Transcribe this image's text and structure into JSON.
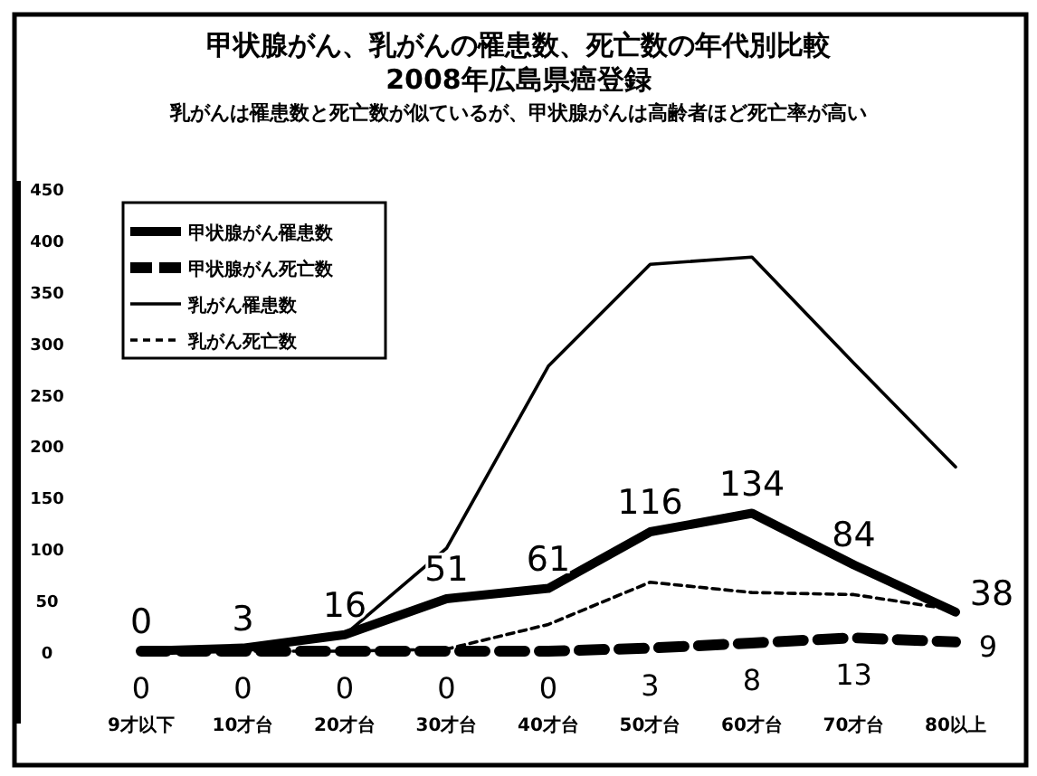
{
  "chart_data": {
    "type": "line",
    "title": "甲状腺がん、乳がんの罹患数、死亡数の年代別比較\n2008年広島県癌登録",
    "subtitle": "乳がんは罹患数と死亡数が似ているが、甲状腺がんは高齢者ほど死亡率が高い",
    "categories": [
      "9才以下",
      "10才台",
      "20才台",
      "30才台",
      "40才台",
      "50才台",
      "60才台",
      "70才台",
      "80以上"
    ],
    "series": [
      {
        "name": "甲状腺がん罹患数",
        "color": "#000000",
        "line_style": "solid",
        "values": [
          0,
          3,
          16,
          51,
          61,
          116,
          134,
          84,
          38
        ],
        "value_labels": [
          "0",
          "3",
          "16",
          "51",
          "61",
          "116",
          "134",
          "84",
          "38"
        ]
      },
      {
        "name": "甲状腺がん死亡数",
        "color": "#000000",
        "line_style": "dashed",
        "values": [
          0,
          0,
          0,
          0,
          0,
          3,
          8,
          13,
          9
        ],
        "value_labels": [
          "0",
          "0",
          "0",
          "0",
          "0",
          "3",
          "8",
          "13",
          "9"
        ]
      },
      {
        "name": "乳がん罹患数",
        "color": "#000000",
        "line_style": "solid",
        "values": [
          0,
          0,
          16,
          100,
          277,
          376,
          383,
          280,
          179
        ]
      },
      {
        "name": "乳がん死亡数",
        "color": "#000000",
        "line_style": "dotted",
        "values": [
          0,
          0,
          0,
          2,
          26,
          67,
          57,
          55,
          40
        ]
      }
    ],
    "ylim": [
      0,
      450
    ],
    "yticks": [
      0,
      50,
      100,
      150,
      200,
      250,
      300,
      350,
      400,
      450
    ],
    "grid": false,
    "legend": "top left",
    "marker": "none"
  }
}
